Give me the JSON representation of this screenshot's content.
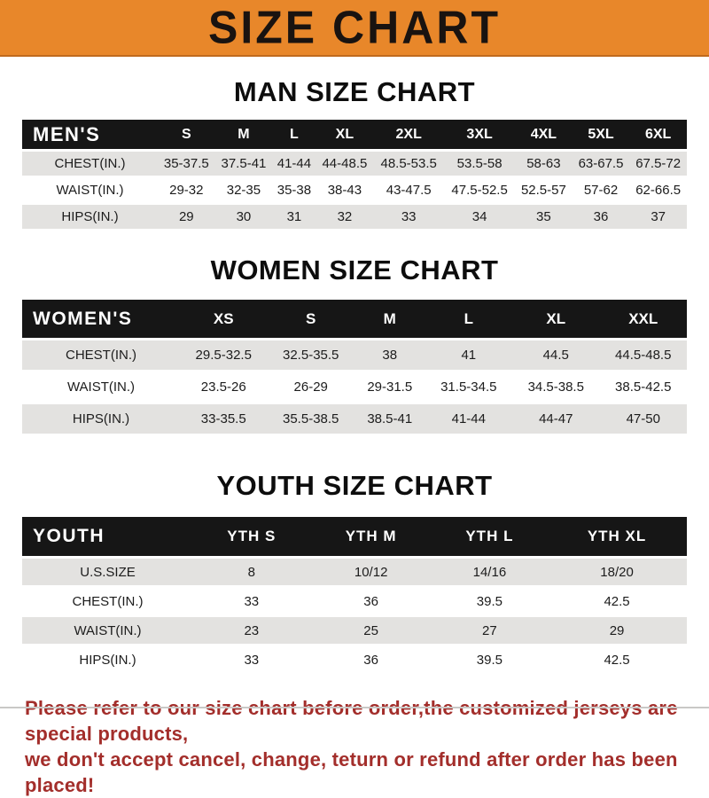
{
  "banner": {
    "title": "SIZE CHART",
    "bg_color": "#E8872A",
    "text_color": "#191310"
  },
  "sections": [
    {
      "heading": "MAN SIZE CHART",
      "corner": "MEN'S",
      "columns": [
        "S",
        "M",
        "L",
        "XL",
        "2XL",
        "3XL",
        "4XL",
        "5XL",
        "6XL"
      ],
      "rows": [
        {
          "label": "CHEST(IN.)",
          "values": [
            "35-37.5",
            "37.5-41",
            "41-44",
            "44-48.5",
            "48.5-53.5",
            "53.5-58",
            "58-63",
            "63-67.5",
            "67.5-72"
          ]
        },
        {
          "label": "WAIST(IN.)",
          "values": [
            "29-32",
            "32-35",
            "35-38",
            "38-43",
            "43-47.5",
            "47.5-52.5",
            "52.5-57",
            "57-62",
            "62-66.5"
          ]
        },
        {
          "label": "HIPS(IN.)",
          "values": [
            "29",
            "30",
            "31",
            "32",
            "33",
            "34",
            "35",
            "36",
            "37"
          ]
        }
      ]
    },
    {
      "heading": "WOMEN SIZE CHART",
      "corner": "WOMEN'S",
      "columns": [
        "XS",
        "S",
        "M",
        "L",
        "XL",
        "XXL"
      ],
      "rows": [
        {
          "label": "CHEST(IN.)",
          "values": [
            "29.5-32.5",
            "32.5-35.5",
            "38",
            "41",
            "44.5",
            "44.5-48.5"
          ]
        },
        {
          "label": "WAIST(IN.)",
          "values": [
            "23.5-26",
            "26-29",
            "29-31.5",
            "31.5-34.5",
            "34.5-38.5",
            "38.5-42.5"
          ]
        },
        {
          "label": "HIPS(IN.)",
          "values": [
            "33-35.5",
            "35.5-38.5",
            "38.5-41",
            "41-44",
            "44-47",
            "47-50"
          ]
        }
      ]
    },
    {
      "heading": "YOUTH SIZE CHART",
      "corner": "YOUTH",
      "columns": [
        "YTH S",
        "YTH M",
        "YTH L",
        "YTH XL"
      ],
      "rows": [
        {
          "label": "U.S.SIZE",
          "values": [
            "8",
            "10/12",
            "14/16",
            "18/20"
          ]
        },
        {
          "label": "CHEST(IN.)",
          "values": [
            "33",
            "36",
            "39.5",
            "42.5"
          ]
        },
        {
          "label": "WAIST(IN.)",
          "values": [
            "23",
            "25",
            "27",
            "29"
          ]
        },
        {
          "label": "HIPS(IN.)",
          "values": [
            "33",
            "36",
            "39.5",
            "42.5"
          ]
        }
      ]
    }
  ],
  "footer": {
    "line1": "Please refer to our size chart before order,the customized jerseys are special products,",
    "line2": "we don't accept cancel, change, teturn or refund after order has been placed!",
    "text_color": "#A32E2B"
  },
  "colors": {
    "banner_orange": "#E8872A",
    "header_bar_black": "#161616",
    "row_stripe_gray": "#E3E2E0",
    "footer_red": "#A32E2B"
  }
}
